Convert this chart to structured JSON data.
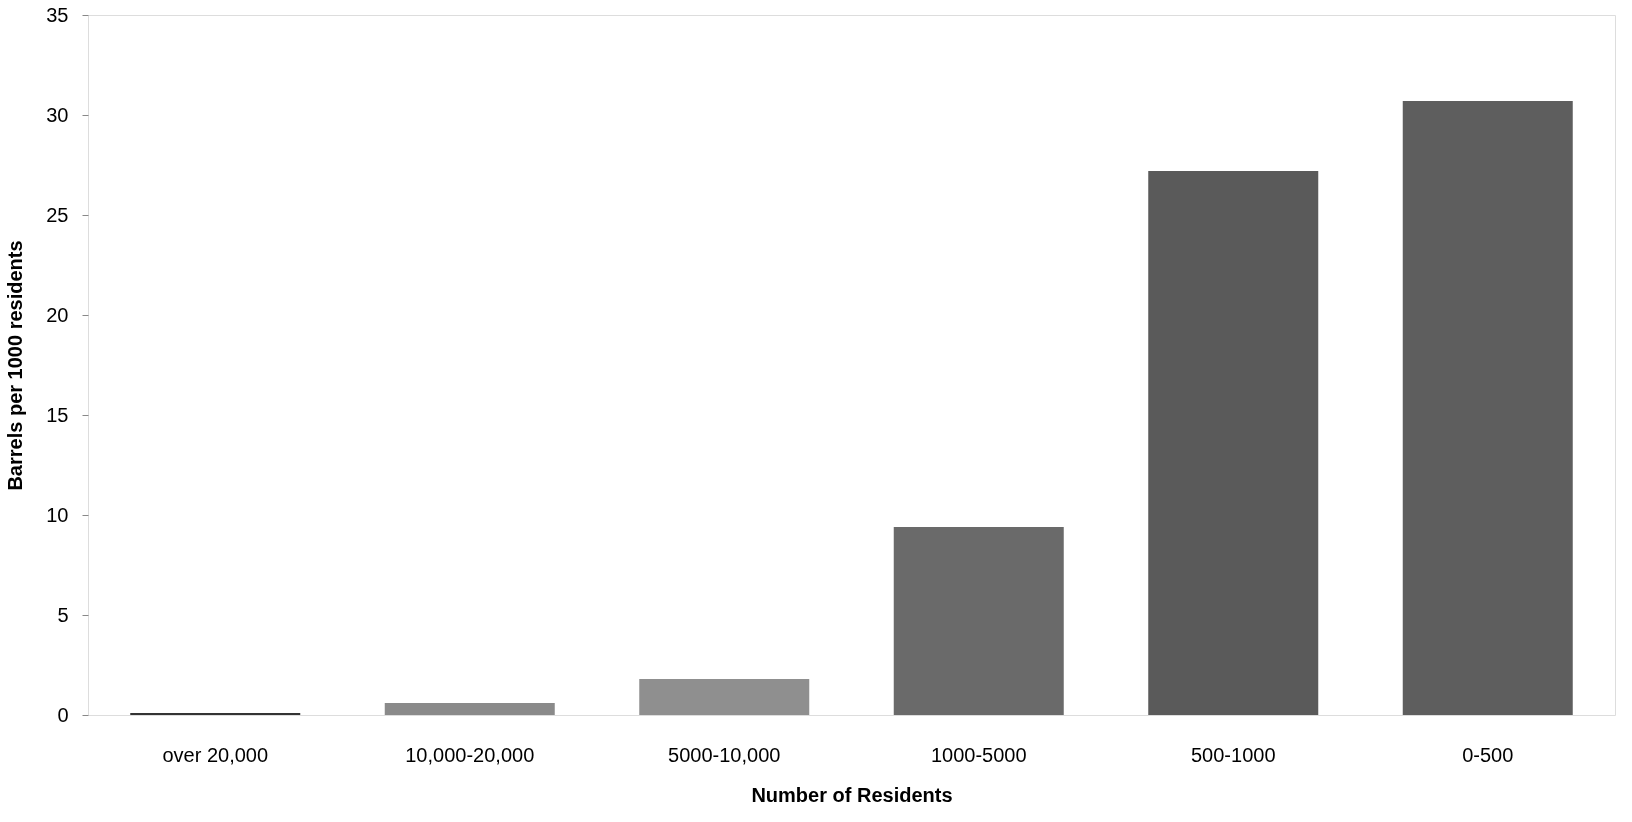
{
  "chart_data": {
    "type": "bar",
    "xlabel": "Number of Residents",
    "ylabel": "Barrels per 1000 residents",
    "categories": [
      "over 20,000",
      "10,000-20,000",
      "5000-10,000",
      "1000-5000",
      "500-1000",
      "0-500"
    ],
    "values": [
      0.1,
      0.6,
      1.8,
      9.4,
      27.2,
      30.7
    ],
    "colors": [
      "#333333",
      "#8a8a8a",
      "#8f8f8f",
      "#6a6a6a",
      "#5a5a5a",
      "#5e5e5e"
    ],
    "ylim": [
      0,
      35
    ],
    "yticks": [
      0,
      5,
      10,
      15,
      20,
      25,
      30,
      35
    ],
    "grid": false
  }
}
